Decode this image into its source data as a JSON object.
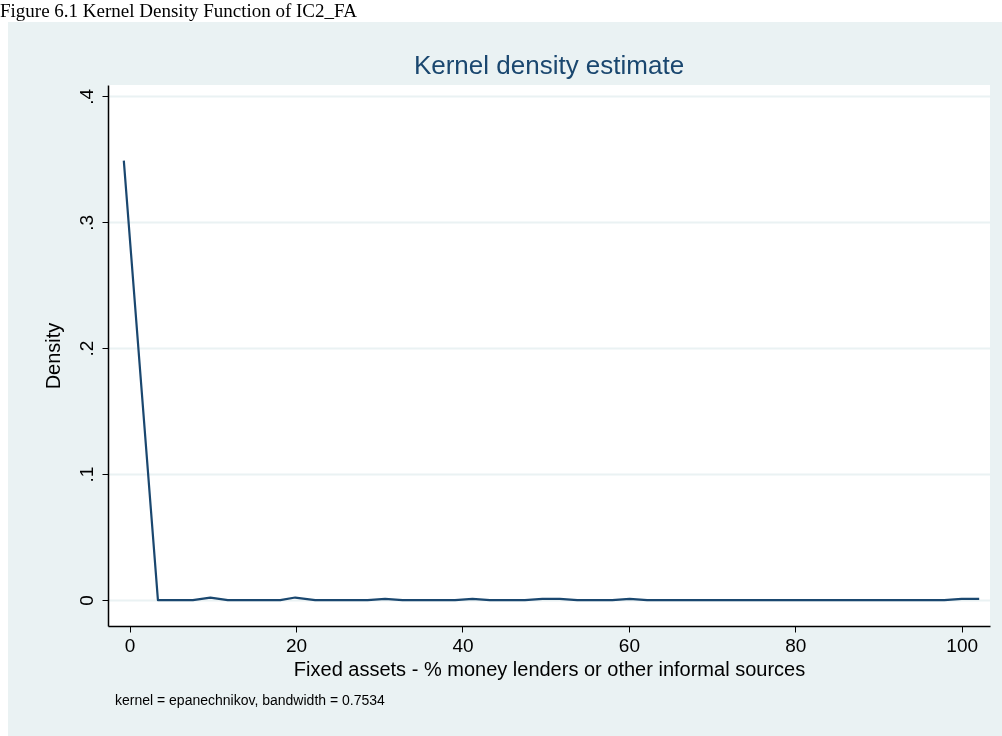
{
  "chart_data": {
    "type": "line",
    "title": "Kernel density estimate",
    "xlabel": "Fixed assets - % money lenders or other informal sources",
    "ylabel": "Density",
    "annotations": [
      "Figure 6.1 Kernel Density Function of IC2_FA",
      "kernel = epanechnikov, bandwidth = 0.7534"
    ],
    "x": [
      -0.7,
      3.4,
      5.5,
      7.6,
      9.7,
      11.8,
      13.9,
      16.0,
      18.1,
      19.9,
      22.3,
      24.4,
      26.5,
      28.6,
      30.7,
      32.8,
      34.9,
      37.0,
      39.1,
      41.2,
      43.3,
      45.4,
      47.5,
      49.6,
      51.7,
      53.8,
      55.9,
      58.0,
      60.1,
      62.2,
      64.3,
      66.4,
      68.5,
      70.6,
      72.7,
      74.8,
      76.9,
      79.0,
      81.1,
      83.2,
      85.3,
      87.4,
      89.5,
      91.6,
      93.7,
      95.8,
      97.9,
      100.0,
      102.1
    ],
    "series": [
      {
        "color": "#1a476f",
        "values": [
          0.349,
          0,
          0,
          0,
          0.002,
          0,
          0,
          0,
          0,
          0.002,
          0,
          0,
          0,
          0,
          0.001,
          0,
          0,
          0,
          0,
          0.001,
          0,
          0,
          0,
          0.001,
          0.001,
          0,
          0,
          0,
          0.001,
          0,
          0,
          0,
          0,
          0,
          0,
          0,
          0,
          0,
          0,
          0,
          0,
          0,
          0,
          0,
          0,
          0,
          0,
          0.001,
          0.001
        ]
      }
    ],
    "xlim": [
      -2.6,
      103.4
    ],
    "xticks": [
      0,
      20,
      40,
      60,
      80,
      100
    ],
    "ylim": [
      -0.0206,
      0.409
    ],
    "yticks": [
      {
        "value": 0,
        "label": "0"
      },
      {
        "value": 0.1,
        "label": ".1"
      },
      {
        "value": 0.2,
        "label": ".2"
      },
      {
        "value": 0.3,
        "label": ".3"
      },
      {
        "value": 0.4,
        "label": ".4"
      }
    ],
    "grid": "y"
  }
}
